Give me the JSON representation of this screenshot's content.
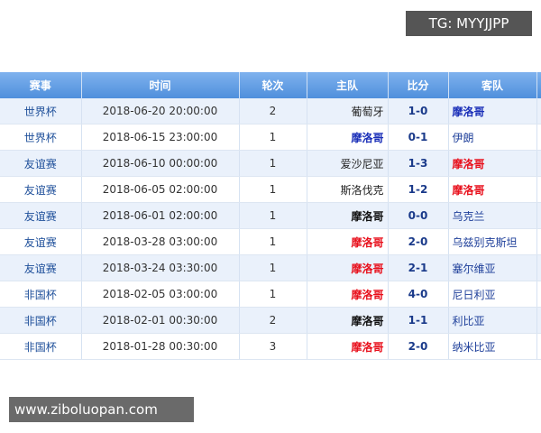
{
  "watermark_top": "TG: MYYJJPP",
  "watermark_bottom": "www.ziboluopan.com",
  "table": {
    "columns": [
      "赛事",
      "时间",
      "轮次",
      "主队",
      "比分",
      "客队"
    ],
    "rows": [
      {
        "competition": "世界杯",
        "time": "2018-06-20 20:00:00",
        "round": "2",
        "home": "葡萄牙",
        "score": "1-0",
        "away": "摩洛哥",
        "away_color": "#1a2fb8"
      },
      {
        "competition": "世界杯",
        "time": "2018-06-15 23:00:00",
        "round": "1",
        "home": "摩洛哥",
        "score": "0-1",
        "away": "伊朗",
        "home_color": "#1a2fb8"
      },
      {
        "competition": "友谊赛",
        "time": "2018-06-10 00:00:00",
        "round": "1",
        "home": "爱沙尼亚",
        "score": "1-3",
        "away": "摩洛哥",
        "away_color": "#e8101c"
      },
      {
        "competition": "友谊赛",
        "time": "2018-06-05 02:00:00",
        "round": "1",
        "home": "斯洛伐克",
        "score": "1-2",
        "away": "摩洛哥",
        "away_color": "#e8101c"
      },
      {
        "competition": "友谊赛",
        "time": "2018-06-01 02:00:00",
        "round": "1",
        "home": "摩洛哥",
        "score": "0-0",
        "away": "乌克兰",
        "home_color": "#111111"
      },
      {
        "competition": "友谊赛",
        "time": "2018-03-28 03:00:00",
        "round": "1",
        "home": "摩洛哥",
        "score": "2-0",
        "away": "乌兹别克斯坦",
        "home_color": "#e8101c"
      },
      {
        "competition": "友谊赛",
        "time": "2018-03-24 03:30:00",
        "round": "1",
        "home": "摩洛哥",
        "score": "2-1",
        "away": "塞尔维亚",
        "home_color": "#e8101c"
      },
      {
        "competition": "非国杯",
        "time": "2018-02-05 03:00:00",
        "round": "1",
        "home": "摩洛哥",
        "score": "4-0",
        "away": "尼日利亚",
        "home_color": "#e8101c"
      },
      {
        "competition": "非国杯",
        "time": "2018-02-01 00:30:00",
        "round": "2",
        "home": "摩洛哥",
        "score": "1-1",
        "away": "利比亚",
        "home_color": "#111111"
      },
      {
        "competition": "非国杯",
        "time": "2018-01-28 00:30:00",
        "round": "3",
        "home": "摩洛哥",
        "score": "2-0",
        "away": "纳米比亚",
        "home_color": "#e8101c"
      }
    ]
  }
}
